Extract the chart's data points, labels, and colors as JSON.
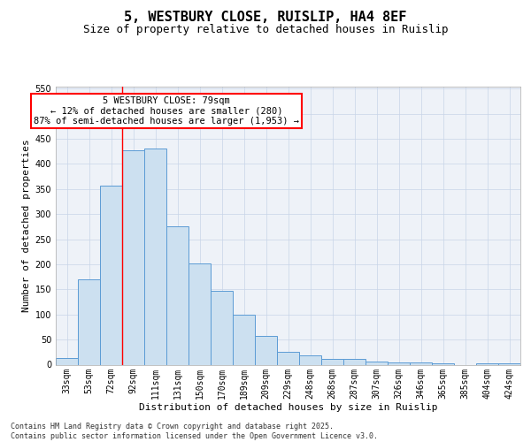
{
  "title": "5, WESTBURY CLOSE, RUISLIP, HA4 8EF",
  "subtitle": "Size of property relative to detached houses in Ruislip",
  "xlabel": "Distribution of detached houses by size in Ruislip",
  "ylabel": "Number of detached properties",
  "categories": [
    "33sqm",
    "53sqm",
    "72sqm",
    "92sqm",
    "111sqm",
    "131sqm",
    "150sqm",
    "170sqm",
    "189sqm",
    "209sqm",
    "229sqm",
    "248sqm",
    "268sqm",
    "287sqm",
    "307sqm",
    "326sqm",
    "346sqm",
    "365sqm",
    "385sqm",
    "404sqm",
    "424sqm"
  ],
  "values": [
    13,
    170,
    357,
    427,
    430,
    275,
    202,
    148,
    99,
    57,
    26,
    19,
    11,
    11,
    7,
    5,
    5,
    2,
    0,
    3,
    3
  ],
  "bar_color_fill": "#cce0f0",
  "bar_color_edge": "#5b9bd5",
  "red_line_index": 2.5,
  "annotation_line1": "5 WESTBURY CLOSE: 79sqm",
  "annotation_line2": "← 12% of detached houses are smaller (280)",
  "annotation_line3": "87% of semi-detached houses are larger (1,953) →",
  "ylim": [
    0,
    555
  ],
  "yticks": [
    0,
    50,
    100,
    150,
    200,
    250,
    300,
    350,
    400,
    450,
    500,
    550
  ],
  "grid_color": "#c8d4e8",
  "background_color": "#eef2f8",
  "footer_line1": "Contains HM Land Registry data © Crown copyright and database right 2025.",
  "footer_line2": "Contains public sector information licensed under the Open Government Licence v3.0.",
  "title_fontsize": 11,
  "subtitle_fontsize": 9,
  "ylabel_fontsize": 8,
  "xlabel_fontsize": 8,
  "tick_fontsize": 7,
  "footer_fontsize": 6,
  "ann_fontsize": 7.5
}
